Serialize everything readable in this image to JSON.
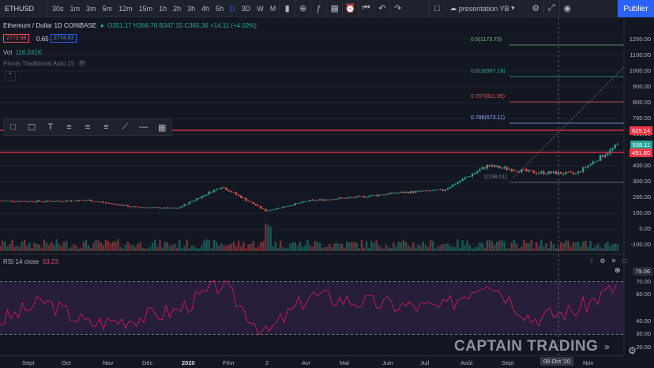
{
  "toolbar": {
    "symbol": "ETHUSD",
    "timeframes": [
      "30s",
      "1m",
      "3m",
      "5m",
      "12m",
      "15m",
      "1h",
      "2h",
      "3h",
      "4h",
      "5h",
      "D",
      "3D",
      "W",
      "M"
    ],
    "active_timeframe": "D",
    "layout_name": "presentation YB",
    "publish_label": "Publier"
  },
  "legend": {
    "title": "Ethereum / Dollar  1D  COINBASE",
    "open": "O351.17",
    "high": "H368.70",
    "low": "B347.15",
    "close": "C365.36",
    "change": "+14.11 (+4.02%)",
    "bid": "2773.98",
    "spread": "0.65",
    "ask": "2774.63",
    "volume_label": "Vol",
    "volume_value": "116.241K",
    "pivots_label": "Pivots Traditional Auto 15"
  },
  "price_axis": [
    "1200.00",
    "1100.00",
    "1000.00",
    "900.00",
    "800.00",
    "700.00",
    "600.00",
    "500.00",
    "400.00",
    "300.00",
    "200.00",
    "100.00",
    "0.00",
    "-100.00"
  ],
  "price_tags": {
    "resistance": "625.14",
    "current": "538.11",
    "support": "491.80"
  },
  "fib_levels": [
    {
      "label": "0.5(1173.73)",
      "color": "#66bb6a"
    },
    {
      "label": "0.618(967.18)",
      "color": "#26a69a"
    },
    {
      "label": "0.707(811.39)",
      "color": "#ef5350"
    },
    {
      "label": "0.786(673.11)",
      "color": "#8fa8ff"
    },
    {
      "label": "1(298.51)",
      "color": "#787b86"
    }
  ],
  "rsi": {
    "label": "RSI 14 close",
    "value": "53.23",
    "axis": [
      "70.00",
      "60.00",
      "40.00",
      "30.00",
      "20.00"
    ],
    "tag": "79.06"
  },
  "time_axis": [
    "Sept",
    "Oct",
    "Nov",
    "Déc",
    "2020",
    "Févr",
    "2",
    "Avr",
    "Mai",
    "Juin",
    "Juil",
    "Août",
    "Sept",
    "09 Oct '20",
    "Nov"
  ],
  "watermark": "CAPTAIN TRADING",
  "colors": {
    "up": "#26a69a",
    "down": "#ef5350",
    "rsi": "#c2185b",
    "accent": "#2962ff",
    "level_line": "#f23645"
  },
  "chart_data": [
    {
      "type": "line",
      "title": "Ethereum / Dollar 1D COINBASE",
      "xlabel": "",
      "ylabel": "",
      "x": [
        "Sept",
        "Oct",
        "Nov",
        "Déc",
        "2020",
        "Févr",
        "Mars",
        "Avr",
        "Mai",
        "Juin",
        "Juil",
        "Août",
        "Sept",
        "Oct",
        "Nov"
      ],
      "values": [
        178,
        175,
        182,
        140,
        130,
        270,
        115,
        180,
        200,
        230,
        245,
        400,
        360,
        350,
        540
      ],
      "ylim": [
        -100,
        1250
      ],
      "grid": true
    },
    {
      "type": "line",
      "title": "",
      "xlabel": "",
      "ylabel": "",
      "x": [
        "Sept",
        "Oct",
        "Nov",
        "Déc",
        "2020",
        "Févr",
        "Mars",
        "Avr",
        "Mai",
        "Juin",
        "Juil",
        "Août",
        "Sept",
        "Oct",
        "Nov"
      ],
      "values": [
        40,
        55,
        38,
        42,
        48,
        68,
        30,
        60,
        55,
        52,
        50,
        72,
        42,
        48,
        68
      ],
      "ylim": [
        20,
        80
      ],
      "grid": false
    }
  ]
}
